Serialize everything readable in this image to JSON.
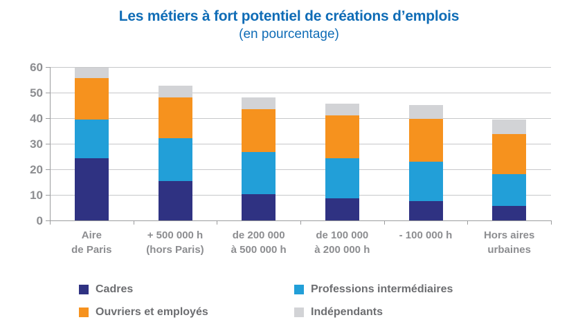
{
  "chart_data": {
    "type": "bar",
    "stacked": true,
    "title": "Les métiers à fort potentiel de créations d’emplois",
    "subtitle": "(en pourcentage)",
    "categories": [
      "Aire\nde Paris",
      "+ 500 000 h\n(hors Paris)",
      "de 200 000\nà 500 000 h",
      "de 100 000\nà 200 000 h",
      "- 100 000 h",
      "Hors aires\nurbaines"
    ],
    "series": [
      {
        "name": "Cadres",
        "color": "#2F3282",
        "values": [
          24.4,
          15.3,
          10.3,
          8.6,
          7.7,
          5.7
        ]
      },
      {
        "name": "Professions intermédiaires",
        "color": "#229FD8",
        "values": [
          15.1,
          16.9,
          16.5,
          15.7,
          15.3,
          12.4
        ]
      },
      {
        "name": "Ouvriers et employés",
        "color": "#F6921E",
        "values": [
          16.1,
          15.9,
          16.6,
          16.8,
          16.8,
          15.7
        ]
      },
      {
        "name": "Indépendants",
        "color": "#D2D3D6",
        "values": [
          4.2,
          4.7,
          4.6,
          4.7,
          5.3,
          5.7
        ]
      }
    ],
    "totals": [
      59.8,
      52.8,
      48.0,
      45.8,
      45.1,
      39.5
    ],
    "ylim": [
      0,
      60
    ],
    "yticks": [
      0,
      10,
      20,
      30,
      40,
      50,
      60
    ],
    "grid": true,
    "legend_position": "bottom",
    "legend_columns": 2
  },
  "colors": {
    "title": "#0F6CB6",
    "axis_label": "#8C8D90",
    "legend_text": "#6D6E71",
    "gridline": "#C6C7C9",
    "axis_line": "#9B9C9E"
  }
}
